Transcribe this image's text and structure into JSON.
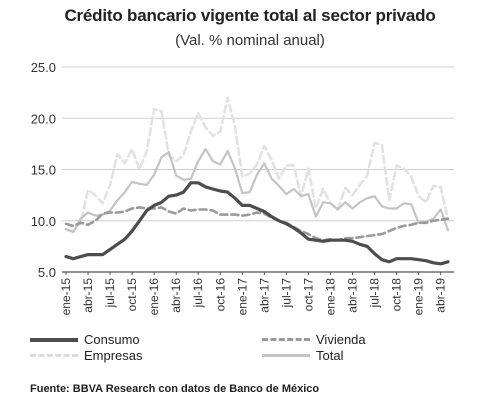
{
  "title": "Crédito bancario vigente total al sector privado",
  "subtitle": "(Val. % nominal anual)",
  "source": "Fuente: BBVA Research con datos de Banco de México",
  "colors": {
    "consumo": "#4d4d4d",
    "vivienda": "#9a9a9a",
    "empresas": "#e2e2e2",
    "total": "#c4c4c4",
    "grid": "#cfcfcf"
  },
  "chart_data": {
    "type": "line",
    "ylim": [
      5.0,
      25.0
    ],
    "yticks": [
      "25.0",
      "20.0",
      "15.0",
      "10.0",
      "5.0"
    ],
    "ytick_values": [
      25,
      20,
      15,
      10,
      5
    ],
    "grid": true,
    "legend_position": "bottom",
    "x": [
      "ene-15",
      "feb-15",
      "mar-15",
      "abr-15",
      "may-15",
      "jun-15",
      "jul-15",
      "ago-15",
      "sep-15",
      "oct-15",
      "nov-15",
      "dic-15",
      "ene-16",
      "feb-16",
      "mar-16",
      "abr-16",
      "may-16",
      "jun-16",
      "jul-16",
      "ago-16",
      "sep-16",
      "oct-16",
      "nov-16",
      "dic-16",
      "ene-17",
      "feb-17",
      "mar-17",
      "abr-17",
      "may-17",
      "jun-17",
      "jul-17",
      "ago-17",
      "sep-17",
      "oct-17",
      "nov-17",
      "dic-17",
      "ene-18",
      "feb-18",
      "mar-18",
      "abr-18",
      "may-18",
      "jun-18",
      "jul-18",
      "ago-18",
      "sep-18",
      "oct-18",
      "nov-18",
      "dic-18",
      "ene-19",
      "feb-19",
      "mar-19",
      "abr-19",
      "may-19"
    ],
    "xtick_labels": [
      "ene-15",
      "abr-15",
      "jul-15",
      "oct-15",
      "ene-16",
      "abr-16",
      "jul-16",
      "oct-16",
      "ene-17",
      "abr-17",
      "jul-17",
      "oct-17",
      "ene-18",
      "abr-18",
      "jul-18",
      "oct-18",
      "ene-19",
      "abr-19"
    ],
    "series": [
      {
        "name": "Consumo",
        "style": "solid-thick",
        "values": [
          6.5,
          6.3,
          6.5,
          6.7,
          6.7,
          6.7,
          7.2,
          7.7,
          8.2,
          9.0,
          10.0,
          11.0,
          11.5,
          11.8,
          12.4,
          12.5,
          12.8,
          13.7,
          13.7,
          13.3,
          13.1,
          12.9,
          12.8,
          12.2,
          11.5,
          11.5,
          11.2,
          10.9,
          10.4,
          10.0,
          9.7,
          9.3,
          8.8,
          8.2,
          8.1,
          8.0,
          8.1,
          8.1,
          8.1,
          8.0,
          7.7,
          7.5,
          6.8,
          6.2,
          6.0,
          6.3,
          6.3,
          6.3,
          6.2,
          6.1,
          5.9,
          5.8,
          6.0
        ]
      },
      {
        "name": "Vivienda",
        "style": "dashed",
        "values": [
          9.7,
          9.5,
          9.8,
          9.6,
          10.0,
          10.7,
          10.8,
          10.8,
          10.9,
          11.2,
          11.3,
          11.2,
          11.2,
          11.3,
          10.9,
          10.7,
          11.2,
          11.0,
          11.1,
          11.1,
          11.0,
          10.6,
          10.6,
          10.6,
          10.5,
          10.6,
          10.8,
          10.7,
          10.3,
          10.0,
          9.8,
          9.4,
          9.0,
          8.7,
          8.3,
          8.1,
          8.2,
          8.1,
          8.3,
          8.3,
          8.4,
          8.5,
          8.6,
          8.7,
          9.0,
          9.3,
          9.5,
          9.6,
          9.8,
          9.8,
          10.0,
          10.1,
          10.2
        ]
      },
      {
        "name": "Empresas",
        "style": "dashed-light",
        "values": [
          9.1,
          9.0,
          9.8,
          13.0,
          12.5,
          11.7,
          13.5,
          16.5,
          15.6,
          17.0,
          15.0,
          16.8,
          20.9,
          20.7,
          16.4,
          15.8,
          16.4,
          18.7,
          20.5,
          19.1,
          18.3,
          18.7,
          22.0,
          19.2,
          14.3,
          14.6,
          15.5,
          17.3,
          15.9,
          14.1,
          15.4,
          15.4,
          12.4,
          15.1,
          11.2,
          13.1,
          11.7,
          11.1,
          13.2,
          12.5,
          13.5,
          14.4,
          17.6,
          17.4,
          12.0,
          15.4,
          15.1,
          14.3,
          12.4,
          11.8,
          13.4,
          13.3,
          10.1
        ]
      },
      {
        "name": "Total",
        "style": "solid-light",
        "values": [
          9.2,
          8.9,
          10.2,
          10.8,
          10.5,
          10.6,
          11.0,
          12.0,
          12.8,
          13.8,
          13.6,
          13.5,
          14.5,
          16.2,
          16.7,
          14.4,
          14.0,
          14.1,
          15.8,
          17.0,
          15.8,
          15.5,
          16.8,
          15.1,
          12.7,
          12.8,
          14.5,
          15.6,
          14.1,
          13.4,
          12.6,
          13.1,
          12.4,
          12.6,
          10.4,
          11.8,
          11.7,
          11.1,
          11.8,
          11.2,
          11.8,
          12.2,
          12.4,
          11.4,
          11.2,
          11.2,
          11.7,
          11.6,
          9.8,
          9.9,
          10.2,
          11.1,
          9.1
        ]
      }
    ]
  },
  "legend": [
    {
      "label": "Consumo"
    },
    {
      "label": "Vivienda"
    },
    {
      "label": "Empresas"
    },
    {
      "label": "Total"
    }
  ]
}
